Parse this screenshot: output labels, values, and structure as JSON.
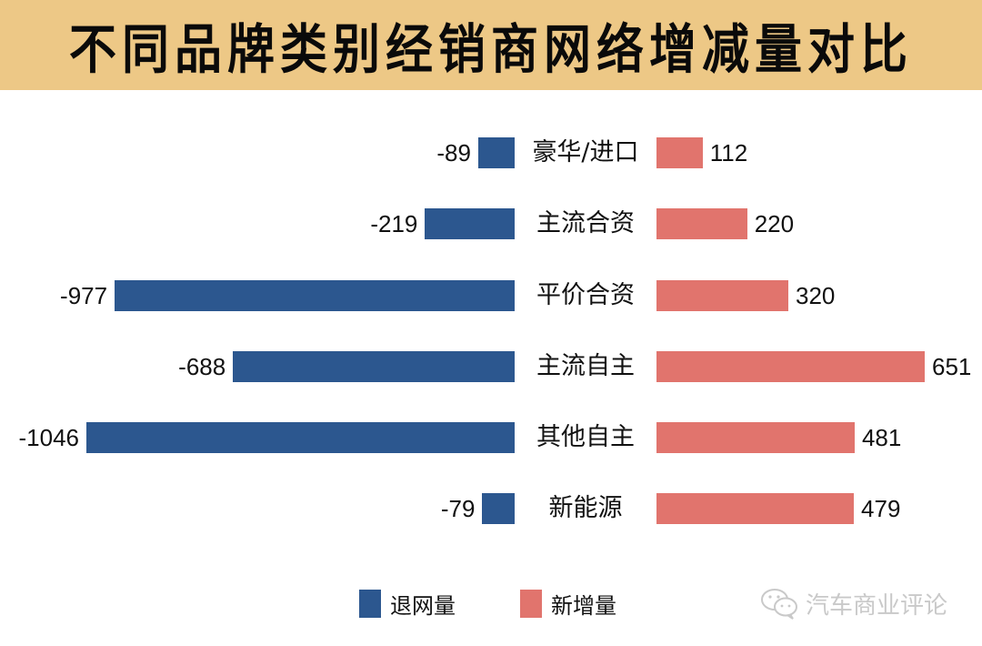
{
  "header": {
    "title": "不同品牌类别经销商网络增减量对比",
    "background": "#edc886"
  },
  "legend": {
    "items": [
      {
        "label": "退网量",
        "color": "#2c578f"
      },
      {
        "label": "新增量",
        "color": "#e1746d"
      }
    ]
  },
  "watermark": {
    "icon": "wechat-icon",
    "text": "汽车商业评论"
  },
  "rows": [
    {
      "category": "豪华/进口",
      "neg": "-89",
      "pos": "112"
    },
    {
      "category": "主流合资",
      "neg": "-219",
      "pos": "220"
    },
    {
      "category": "平价合资",
      "neg": "-977",
      "pos": "320"
    },
    {
      "category": "主流自主",
      "neg": "-688",
      "pos": "651"
    },
    {
      "category": "其他自主",
      "neg": "-1046",
      "pos": "481"
    },
    {
      "category": "新能源",
      "neg": "-79",
      "pos": "479"
    }
  ],
  "chart_data": {
    "type": "bar",
    "orientation": "horizontal",
    "layout": "diverging (butterfly) with category labels in center",
    "title": "不同品牌类别经销商网络增减量对比",
    "categories": [
      "豪华/进口",
      "主流合资",
      "平价合资",
      "主流自主",
      "其他自主",
      "新能源"
    ],
    "series": [
      {
        "name": "退网量",
        "color": "#2c578f",
        "values": [
          -89,
          -219,
          -977,
          -688,
          -1046,
          -79
        ]
      },
      {
        "name": "新增量",
        "color": "#e1746d",
        "values": [
          112,
          220,
          320,
          651,
          481,
          479
        ]
      }
    ],
    "data_labels": true,
    "grid": false,
    "axes_visible": false,
    "legend_position": "bottom",
    "xlabel": "",
    "ylabel": ""
  }
}
